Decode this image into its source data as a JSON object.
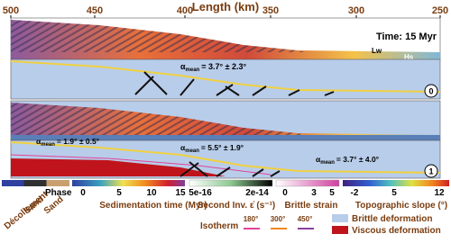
{
  "axis": {
    "title": "Length (km)",
    "ticks": [
      500,
      450,
      400,
      350,
      300,
      250
    ]
  },
  "panels": [
    {
      "time": "Time: 15 Myr",
      "labels": [
        "Lw",
        "Hs"
      ]
    },
    {
      "alpha": [
        {
          "symbol": "α",
          "sub": "mean",
          "text": "= 3.7° ± 2.3°"
        }
      ],
      "id": "0"
    },
    {},
    {
      "alpha": [
        {
          "symbol": "α",
          "sub": "mean",
          "text": "= 1.9° ± 0.5°"
        },
        {
          "symbol": "α",
          "sub": "mean",
          "text": "= 5.5° ± 1.9°"
        },
        {
          "symbol": "α",
          "sub": "mean",
          "text": "= 3.7° ± 4.0°"
        }
      ],
      "id": "1"
    }
  ],
  "legend": {
    "phase": {
      "title": "Phase",
      "labels": [
        "Décollement",
        "Sand",
        "Sand"
      ]
    },
    "sedimentation": {
      "title": "Sedimentation time (Myr)",
      "ticks": [
        0,
        5,
        10,
        15
      ]
    },
    "strain_rate": {
      "title": "Second Inv. ε̇ (s⁻¹)",
      "ticks": [
        "5e-16",
        "2e-14"
      ]
    },
    "brittle_strain": {
      "title": "Brittle strain",
      "ticks": [
        0,
        3,
        5
      ]
    },
    "slope": {
      "title": "Topographic slope (°)",
      "ticks": [
        -2,
        5,
        12
      ]
    },
    "isotherm": {
      "title": "Isotherm",
      "items": [
        {
          "label": "180°",
          "color": "#e0449a"
        },
        {
          "label": "300°",
          "color": "#f08a1c"
        },
        {
          "label": "450°",
          "color": "#8a3fa0"
        }
      ]
    },
    "deformation": [
      {
        "label": "Brittle deformation",
        "color": "#b8cdea"
      },
      {
        "label": "Viscous deformation",
        "color": "#c0141c"
      }
    ]
  }
}
